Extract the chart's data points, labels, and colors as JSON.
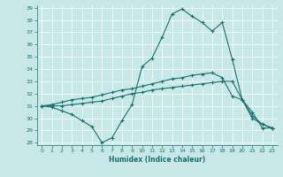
{
  "xlabel": "Humidex (Indice chaleur)",
  "bg_color": "#c8e8e8",
  "line_color": "#1a7070",
  "ylim": [
    27.8,
    39.2
  ],
  "xlim": [
    -0.5,
    23.5
  ],
  "yticks": [
    28,
    29,
    30,
    31,
    32,
    33,
    34,
    35,
    36,
    37,
    38,
    39
  ],
  "xticks": [
    0,
    1,
    2,
    3,
    4,
    5,
    6,
    7,
    8,
    9,
    10,
    11,
    12,
    13,
    14,
    15,
    16,
    17,
    18,
    19,
    20,
    21,
    22,
    23
  ],
  "series1_y": [
    31.0,
    30.9,
    30.6,
    30.3,
    29.8,
    29.3,
    28.0,
    28.4,
    29.8,
    31.1,
    34.2,
    34.9,
    36.6,
    38.5,
    38.9,
    38.3,
    37.8,
    37.1,
    37.8,
    34.8,
    31.5,
    30.5,
    29.2,
    29.2
  ],
  "series2_y": [
    31.0,
    31.1,
    31.3,
    31.5,
    31.6,
    31.7,
    31.9,
    32.1,
    32.3,
    32.4,
    32.6,
    32.8,
    33.0,
    33.2,
    33.3,
    33.5,
    33.6,
    33.7,
    33.3,
    31.8,
    31.5,
    30.0,
    29.5,
    29.2
  ],
  "series3_y": [
    31.0,
    31.0,
    31.0,
    31.1,
    31.2,
    31.3,
    31.4,
    31.6,
    31.8,
    32.0,
    32.1,
    32.3,
    32.4,
    32.5,
    32.6,
    32.7,
    32.8,
    32.9,
    33.0,
    33.0,
    31.5,
    30.2,
    29.5,
    29.2
  ]
}
